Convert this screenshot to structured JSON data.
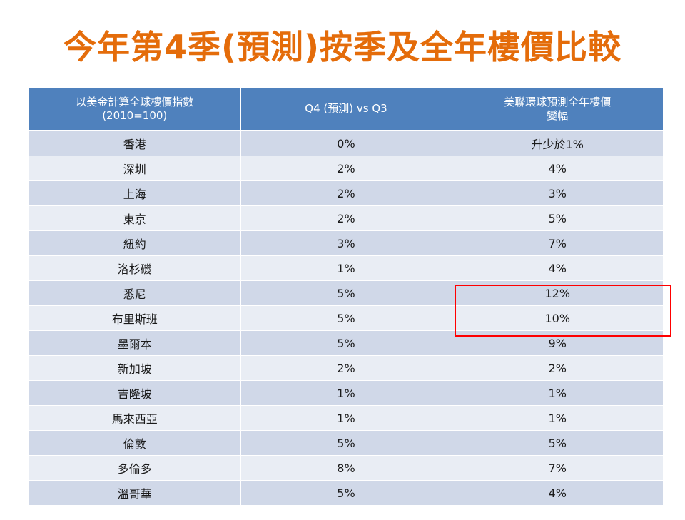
{
  "title": "今年第4季(預測)按季及全年樓價比較",
  "table": {
    "headers": [
      [
        "以美金計算全球樓價指數",
        "(2010=100)"
      ],
      [
        "Q4 (預測) vs Q3"
      ],
      [
        "美聯環球預測全年樓價",
        "變幅"
      ]
    ],
    "rows": [
      [
        "香港",
        "0%",
        "升少於1%"
      ],
      [
        "深圳",
        "2%",
        "4%"
      ],
      [
        "上海",
        "2%",
        "3%"
      ],
      [
        "東京",
        "2%",
        "5%"
      ],
      [
        "紐約",
        "3%",
        "7%"
      ],
      [
        "洛杉磯",
        "1%",
        "4%"
      ],
      [
        "悉尼",
        "5%",
        "12%"
      ],
      [
        "布里斯班",
        "5%",
        "10%"
      ],
      [
        "墨爾本",
        "5%",
        "9%"
      ],
      [
        "新加坡",
        "2%",
        "2%"
      ],
      [
        "吉隆坡",
        "1%",
        "1%"
      ],
      [
        "馬來西亞",
        "1%",
        "1%"
      ],
      [
        "倫敦",
        "5%",
        "5%"
      ],
      [
        "多倫多",
        "8%",
        "7%"
      ],
      [
        "溫哥華",
        "5%",
        "4%"
      ]
    ]
  },
  "colors": {
    "title": "#e46c0a",
    "header_bg": "#4f81bd",
    "row_odd": "#d0d8e8",
    "row_even": "#e9edf4",
    "highlight": "#ff0000"
  }
}
